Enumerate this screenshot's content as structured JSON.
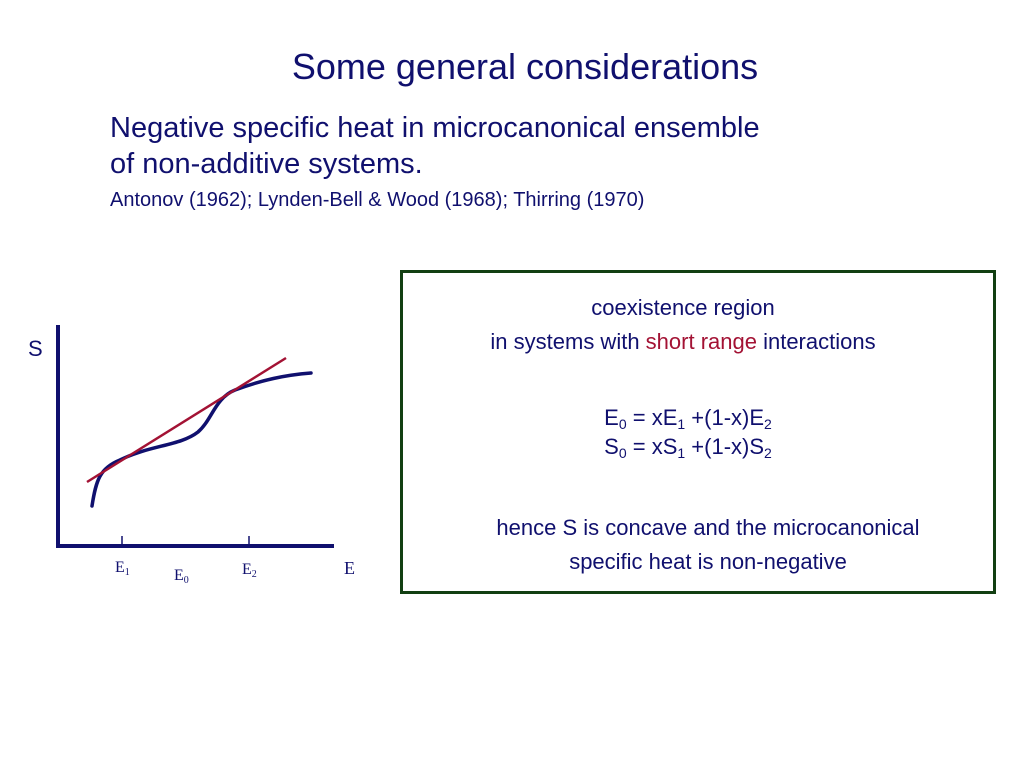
{
  "title": "Some general considerations",
  "intro": {
    "line1": "Negative specific heat in microcanonical ensemble",
    "line2": "of non-additive systems.",
    "references": "Antonov (1962); Lynden-Bell & Wood (1968); Thirring (1970)"
  },
  "diagram": {
    "y_label": "S",
    "x_label": "E",
    "tick_e1": {
      "base": "E",
      "sub": "1"
    },
    "tick_e0": {
      "base": "E",
      "sub": "0"
    },
    "tick_e2": {
      "base": "E",
      "sub": "2"
    },
    "curve_color": "#10106e",
    "tangent_color": "#a31234"
  },
  "box": {
    "heading_line1": "coexistence region",
    "heading_line2_pre": "in systems with ",
    "heading_line2_highlight": "short range",
    "heading_line2_post": " interactions",
    "eq1": {
      "lhs": "E",
      "lhs_sub": "0",
      "eq": " = xE",
      "s1": "1",
      "mid": " +(1-x)E",
      "s2": "2"
    },
    "eq2": {
      "lhs": "S",
      "lhs_sub": "0",
      "eq": " = xS",
      "s1": "1",
      "mid": " +(1-x)S",
      "s2": "2"
    },
    "conclusion_line1": "hence S is concave and the microcanonical",
    "conclusion_line2": "specific heat is non-negative",
    "border_color": "#123f12",
    "highlight_color": "#a31234"
  }
}
